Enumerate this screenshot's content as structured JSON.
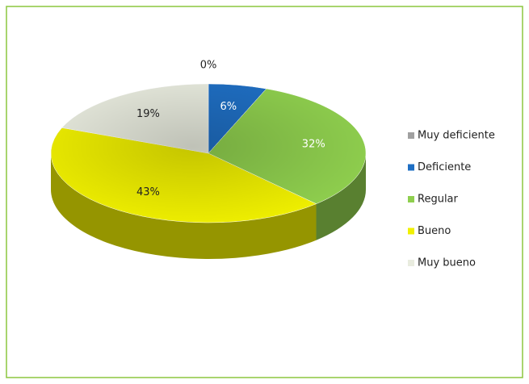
{
  "chart_data": {
    "type": "pie3d",
    "categories": [
      "Muy deficiente",
      "Deficiente",
      "Regular",
      "Bueno",
      "Muy bueno"
    ],
    "values": [
      0,
      6,
      32,
      43,
      19
    ],
    "value_labels": [
      "0%",
      "6%",
      "32%",
      "43%",
      "19%"
    ],
    "colors": [
      "#a0a0a0",
      "#1f6fc4",
      "#8fcf4e",
      "#f0f000",
      "#e9ecdf"
    ],
    "legend": "right"
  }
}
